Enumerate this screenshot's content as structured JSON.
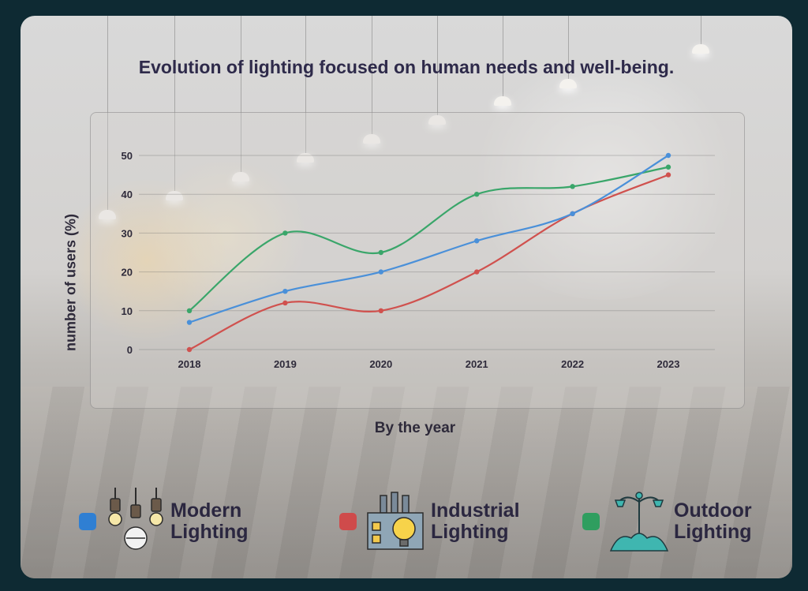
{
  "chart_data": {
    "type": "line",
    "title": "Evolution of lighting focused on human needs and well-being.",
    "xlabel": "By the year",
    "ylabel": "number of users (%)",
    "categories": [
      "2018",
      "2019",
      "2020",
      "2021",
      "2022",
      "2023"
    ],
    "y_ticks": [
      "0",
      "10",
      "20",
      "30",
      "40",
      "50"
    ],
    "ylim": [
      0,
      50
    ],
    "grid": true,
    "legend_position": "bottom",
    "series": [
      {
        "name": "Modern Lighting",
        "color": "#4a90d9",
        "values": [
          7,
          15,
          20,
          28,
          35,
          50
        ]
      },
      {
        "name": "Industrial Lighting",
        "color": "#d0514e",
        "values": [
          0,
          12,
          10,
          20,
          35,
          45
        ]
      },
      {
        "name": "Outdoor Lighting",
        "color": "#3aa66a",
        "values": [
          10,
          30,
          25,
          40,
          42,
          47
        ]
      }
    ]
  },
  "legend": {
    "modern": {
      "line1": "Modern",
      "line2": "Lighting",
      "icon": "pendant-lamps-icon"
    },
    "industrial": {
      "line1": "Industrial",
      "line2": "Lighting",
      "icon": "factory-bulb-icon"
    },
    "outdoor": {
      "line1": "Outdoor",
      "line2": "Lighting",
      "icon": "street-lamp-icon"
    }
  }
}
